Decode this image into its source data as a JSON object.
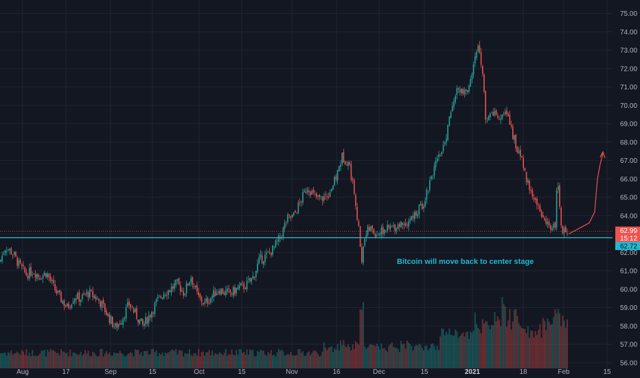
{
  "chart_data": {
    "type": "candlestick",
    "x_ticks": [
      "Aug",
      "17",
      "Sep",
      "15",
      "Oct",
      "15",
      "Nov",
      "16",
      "Dec",
      "15",
      "2021",
      "18",
      "Feb",
      "15"
    ],
    "y_ticks": [
      "56.00",
      "57.00",
      "58.00",
      "59.00",
      "60.00",
      "61.00",
      "62.00",
      "63.00",
      "64.00",
      "65.00",
      "66.00",
      "67.00",
      "68.00",
      "69.00",
      "70.00",
      "71.00",
      "72.00",
      "73.00",
      "74.00",
      "75.00"
    ],
    "ylim": [
      56.0,
      75.5
    ],
    "grid": true,
    "price_path": [
      [
        0,
        61.5
      ],
      [
        8,
        62.3
      ],
      [
        18,
        62.0
      ],
      [
        28,
        61.3
      ],
      [
        38,
        60.8
      ],
      [
        48,
        61.0
      ],
      [
        58,
        60.7
      ],
      [
        68,
        60.9
      ],
      [
        78,
        60.1
      ],
      [
        88,
        59.5
      ],
      [
        98,
        59.0
      ],
      [
        108,
        59.6
      ],
      [
        118,
        59.5
      ],
      [
        128,
        59.8
      ],
      [
        138,
        59.6
      ],
      [
        148,
        59.2
      ],
      [
        158,
        58.5
      ],
      [
        168,
        57.9
      ],
      [
        178,
        58.4
      ],
      [
        188,
        59.2
      ],
      [
        198,
        58.6
      ],
      [
        208,
        58.0
      ],
      [
        218,
        58.6
      ],
      [
        228,
        59.3
      ],
      [
        238,
        59.8
      ],
      [
        248,
        60.0
      ],
      [
        258,
        60.3
      ],
      [
        268,
        59.8
      ],
      [
        278,
        60.7
      ],
      [
        288,
        59.6
      ],
      [
        298,
        59.2
      ],
      [
        308,
        59.6
      ],
      [
        318,
        60.0
      ],
      [
        328,
        59.8
      ],
      [
        338,
        59.8
      ],
      [
        348,
        60.1
      ],
      [
        358,
        60.2
      ],
      [
        368,
        60.6
      ],
      [
        378,
        61.6
      ],
      [
        388,
        61.8
      ],
      [
        398,
        62.2
      ],
      [
        408,
        62.8
      ],
      [
        418,
        63.8
      ],
      [
        428,
        64.0
      ],
      [
        438,
        64.8
      ],
      [
        448,
        65.6
      ],
      [
        458,
        65.0
      ],
      [
        468,
        64.9
      ],
      [
        478,
        65.2
      ],
      [
        488,
        65.9
      ],
      [
        498,
        67.2
      ],
      [
        508,
        66.9
      ],
      [
        518,
        64.8
      ],
      [
        523,
        63.0
      ],
      [
        526,
        61.3
      ],
      [
        530,
        62.8
      ],
      [
        538,
        63.3
      ],
      [
        548,
        63.0
      ],
      [
        558,
        63.2
      ],
      [
        568,
        63.3
      ],
      [
        578,
        63.5
      ],
      [
        588,
        63.6
      ],
      [
        598,
        63.8
      ],
      [
        608,
        64.2
      ],
      [
        618,
        64.8
      ],
      [
        628,
        66.2
      ],
      [
        638,
        67.0
      ],
      [
        648,
        68.0
      ],
      [
        658,
        69.8
      ],
      [
        668,
        71.0
      ],
      [
        678,
        70.5
      ],
      [
        688,
        72.0
      ],
      [
        698,
        73.3
      ],
      [
        703,
        71.5
      ],
      [
        708,
        69.0
      ],
      [
        718,
        69.5
      ],
      [
        728,
        69.2
      ],
      [
        738,
        69.6
      ],
      [
        748,
        68.2
      ],
      [
        758,
        67.3
      ],
      [
        768,
        65.8
      ],
      [
        778,
        65.0
      ],
      [
        788,
        64.2
      ],
      [
        798,
        63.4
      ],
      [
        808,
        63.3
      ],
      [
        812,
        66.2
      ],
      [
        818,
        63.2
      ],
      [
        828,
        63.0
      ]
    ],
    "volume_range": [
      0,
      1
    ],
    "volume_top": 0.72,
    "forecast_path": [
      [
        828,
        63.0
      ],
      [
        838,
        63.2
      ],
      [
        848,
        63.4
      ],
      [
        858,
        63.6
      ],
      [
        866,
        64.2
      ],
      [
        870,
        66.0
      ],
      [
        874,
        66.8
      ],
      [
        878,
        67.4
      ]
    ],
    "support_level": 62.8,
    "last_price_level": 63.15,
    "colors": {
      "background": "#131722",
      "grid": "#1f2433",
      "up": "#26a69a",
      "down": "#ef5350",
      "support": "#22b8cf",
      "forecast": "#ef5350",
      "tick_text": "#b2b5be"
    },
    "price_tags": [
      {
        "label": "62.99",
        "color": "#ef5350",
        "level": 63.18
      },
      {
        "label": "15:12",
        "color": "#ef5350",
        "level": 62.78
      },
      {
        "label": "62.72",
        "color": "#22b8cf",
        "level": 62.35
      }
    ],
    "annotation": "Bitcoin will move back to center stage"
  }
}
